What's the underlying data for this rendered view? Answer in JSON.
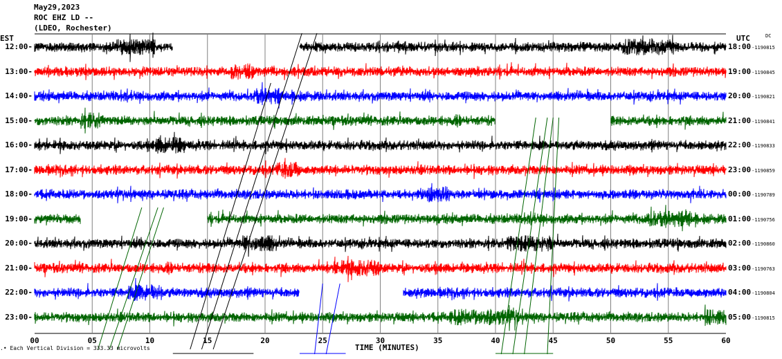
{
  "header": {
    "date": "May29,2023",
    "station": "ROC EHZ LD --",
    "network": "(LDEO, Rochester)"
  },
  "axis_titles": {
    "left": "EST",
    "right": "UTC",
    "right_sub": "DC"
  },
  "xlabel": "TIME (MINUTES)",
  "legend_text": "Each Vertical Division = 333.33 microvolts",
  "colors": {
    "black": "#000000",
    "red": "#ff0000",
    "blue": "#0000ff",
    "green": "#006400",
    "grid": "#808080"
  },
  "chart_data": {
    "type": "line",
    "title": "May29,2023 ROC EHZ LD -- (LDEO, Rochester)",
    "xlabel": "TIME (MINUTES)",
    "xlim": [
      0,
      60
    ],
    "x_ticks": [
      "00",
      "05",
      "10",
      "15",
      "20",
      "25",
      "30",
      "35",
      "40",
      "45",
      "50",
      "55",
      "60"
    ],
    "rows": [
      {
        "est": "12:00",
        "utc": "18:00",
        "dc": "1190815",
        "color": "black",
        "gaps": [
          [
            12,
            23
          ]
        ],
        "loud": [
          [
            7.5,
            10.5
          ],
          [
            51,
            55.5
          ]
        ]
      },
      {
        "est": "13:00",
        "utc": "19:00",
        "dc": "1190845",
        "color": "red",
        "gaps": [],
        "loud": [
          [
            17,
            19
          ]
        ]
      },
      {
        "est": "14:00",
        "utc": "20:00",
        "dc": "1190821",
        "color": "blue",
        "gaps": [],
        "loud": [
          [
            19,
            21.5
          ]
        ]
      },
      {
        "est": "15:00",
        "utc": "21:00",
        "dc": "1190841",
        "color": "green",
        "gaps": [
          [
            40,
            50
          ]
        ],
        "loud": [
          [
            4,
            6
          ]
        ]
      },
      {
        "est": "16:00",
        "utc": "22:00",
        "dc": "1190833",
        "color": "black",
        "gaps": [],
        "loud": [
          [
            10.5,
            13
          ]
        ]
      },
      {
        "est": "17:00",
        "utc": "23:00",
        "dc": "1190859",
        "color": "red",
        "gaps": [],
        "loud": [
          [
            21,
            23
          ]
        ]
      },
      {
        "est": "18:00",
        "utc": "00:00",
        "dc": "1190789",
        "color": "blue",
        "gaps": [],
        "loud": [
          [
            34,
            36
          ]
        ]
      },
      {
        "est": "19:00",
        "utc": "01:00",
        "dc": "1190756",
        "color": "green",
        "gaps": [
          [
            4,
            15
          ]
        ],
        "loud": [
          [
            53,
            57
          ]
        ]
      },
      {
        "est": "20:00",
        "utc": "02:00",
        "dc": "1190860",
        "color": "black",
        "gaps": [],
        "loud": [
          [
            18,
            21
          ],
          [
            41,
            45
          ]
        ]
      },
      {
        "est": "21:00",
        "utc": "03:00",
        "dc": "1190763",
        "color": "red",
        "gaps": [],
        "loud": [
          [
            26,
            30
          ]
        ]
      },
      {
        "est": "22:00",
        "utc": "04:00",
        "dc": "1190804",
        "color": "blue",
        "gaps": [
          [
            23,
            32
          ]
        ],
        "loud": [
          [
            8,
            11
          ]
        ]
      },
      {
        "est": "23:00",
        "utc": "05:00",
        "dc": "1190815",
        "color": "green",
        "gaps": [],
        "loud": [
          [
            36,
            42
          ],
          [
            58,
            60
          ]
        ]
      }
    ]
  }
}
